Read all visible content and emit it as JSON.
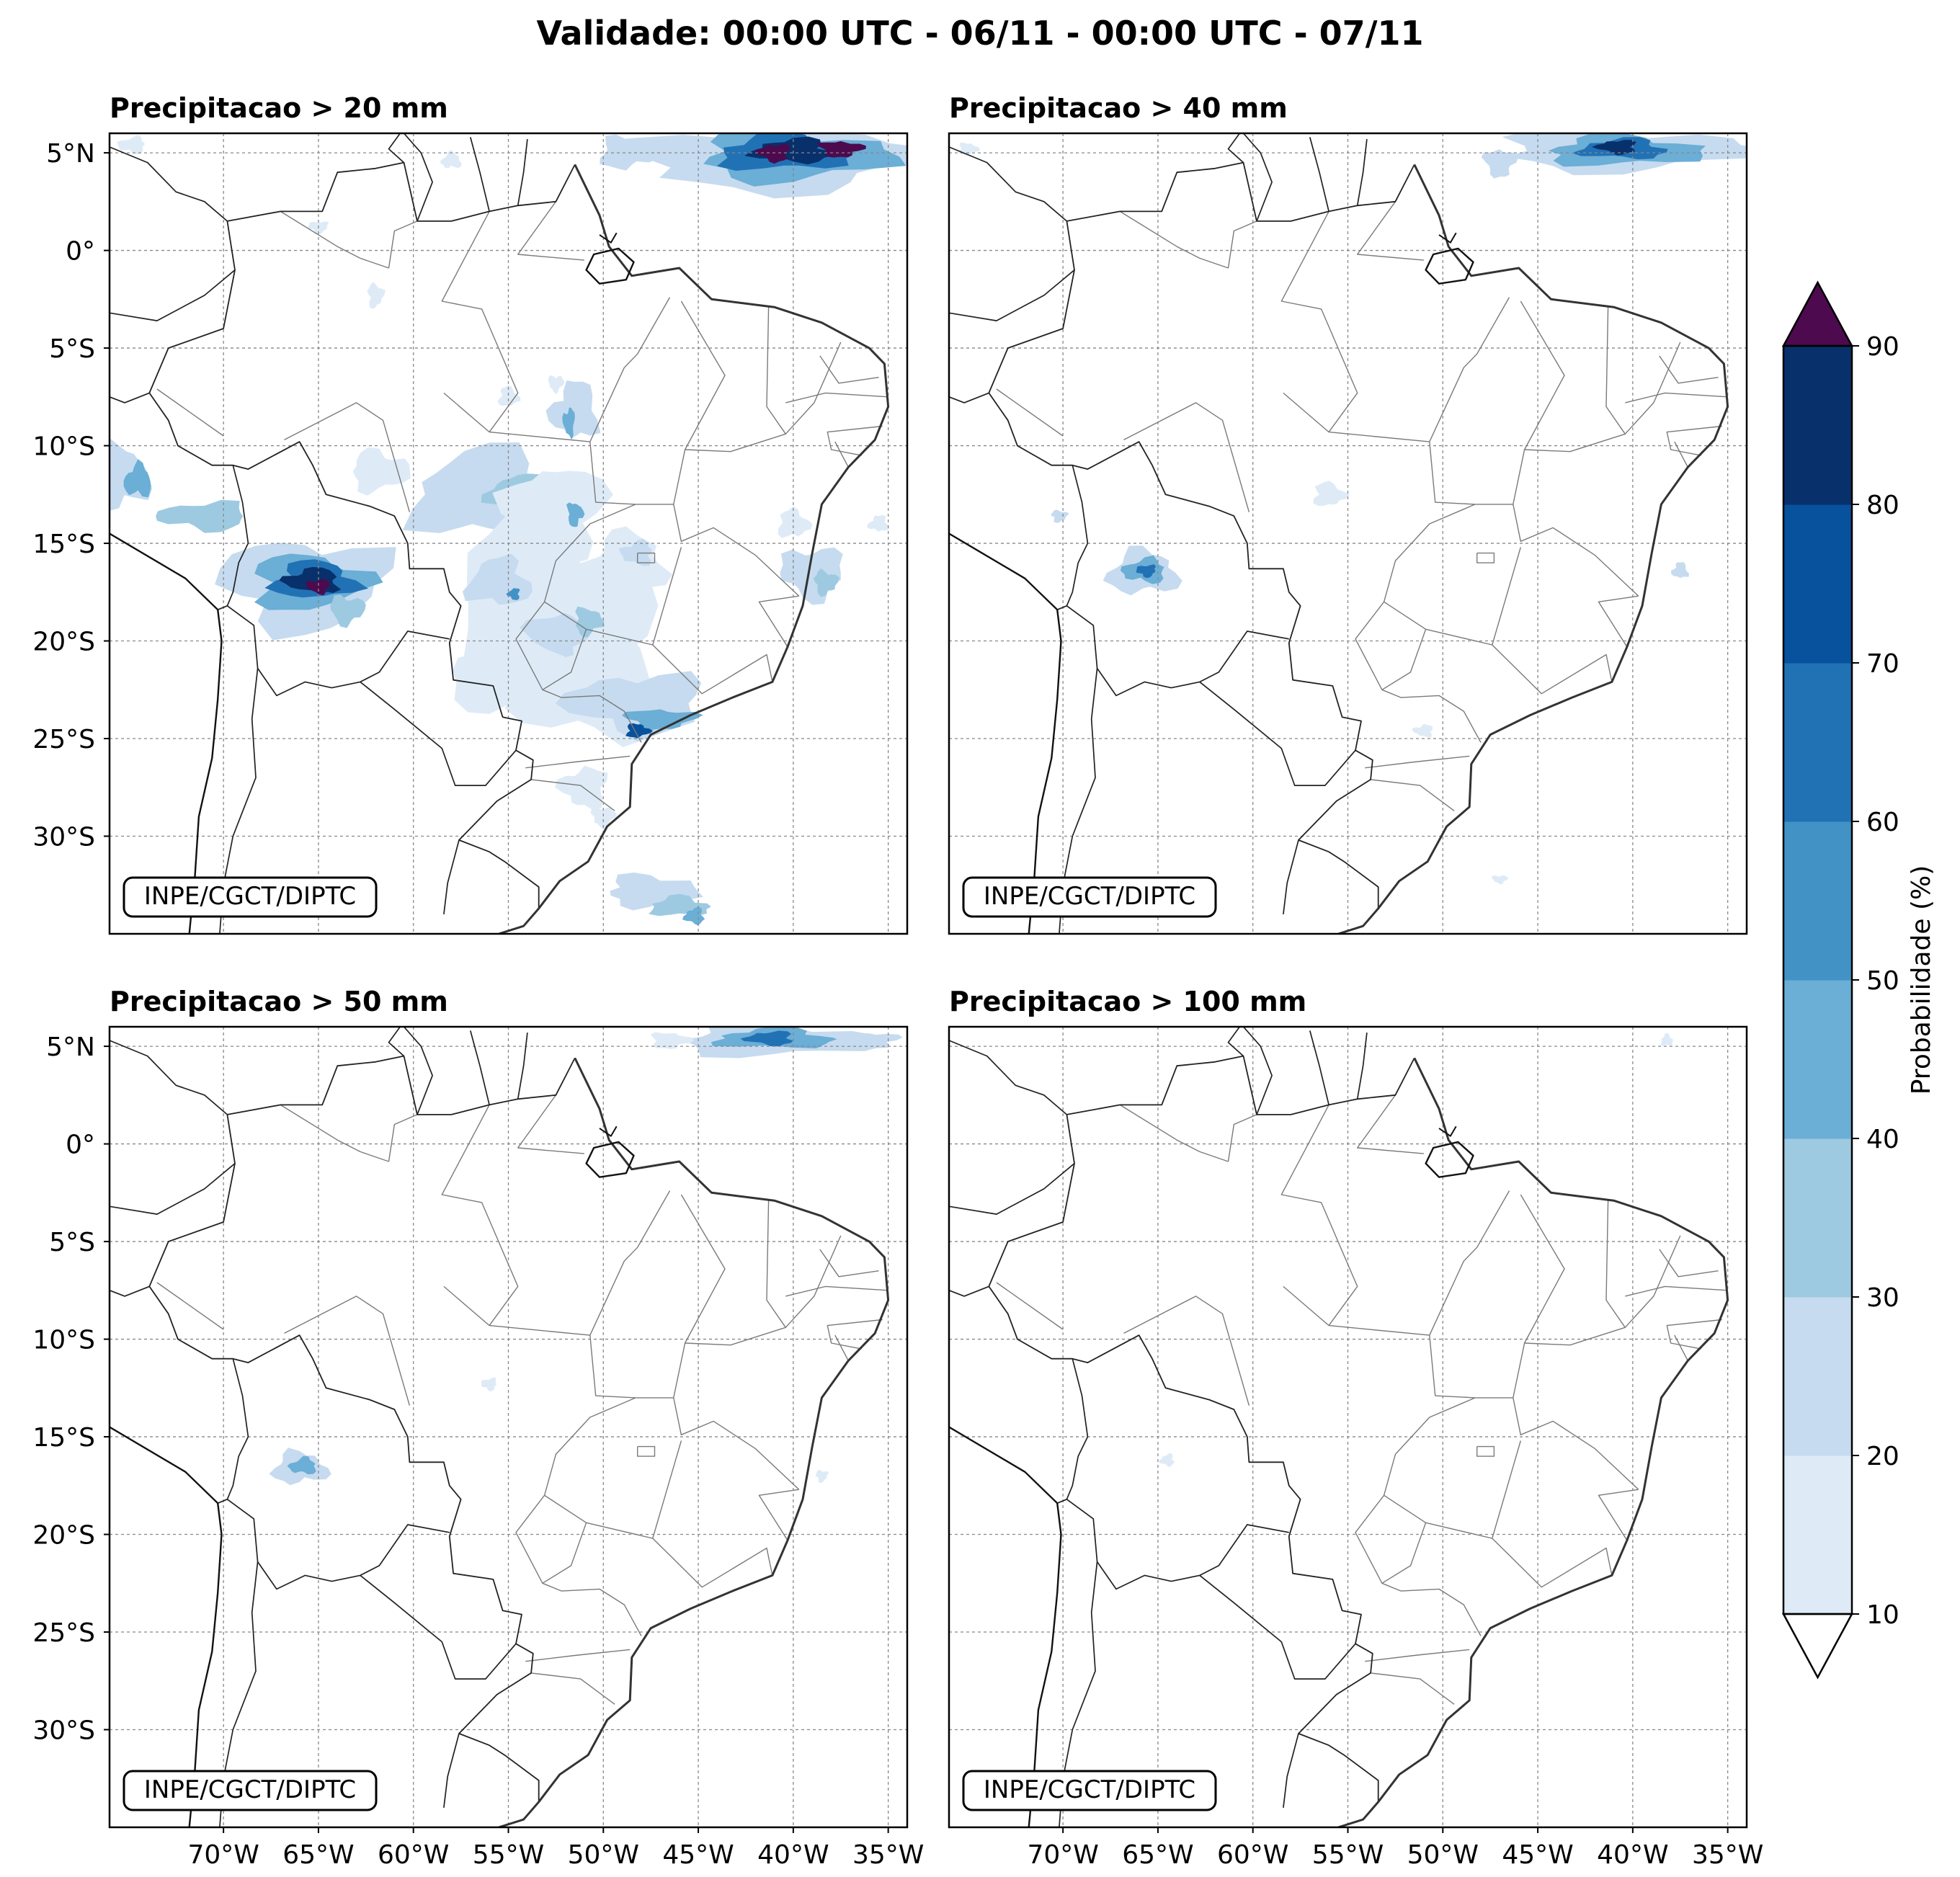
{
  "title": "Validade: 00:00 UTC - 06/11 - 00:00 UTC - 07/11",
  "watermark": "INPE/CGCT/DIPTC",
  "panels": [
    {
      "title": "Precipitacao > 20 mm",
      "threshold_mm": 20
    },
    {
      "title": "Precipitacao > 40 mm",
      "threshold_mm": 40
    },
    {
      "title": "Precipitacao > 50 mm",
      "threshold_mm": 50
    },
    {
      "title": "Precipitacao > 100 mm",
      "threshold_mm": 100
    }
  ],
  "map": {
    "lon_range": [
      -76,
      -34
    ],
    "lat_range": [
      -35,
      6
    ],
    "lat_ticks": [
      {
        "value": 5,
        "label": "5°N"
      },
      {
        "value": 0,
        "label": "0°"
      },
      {
        "value": -5,
        "label": "5°S"
      },
      {
        "value": -10,
        "label": "10°S"
      },
      {
        "value": -15,
        "label": "15°S"
      },
      {
        "value": -20,
        "label": "20°S"
      },
      {
        "value": -25,
        "label": "25°S"
      },
      {
        "value": -30,
        "label": "30°S"
      }
    ],
    "lon_ticks": [
      {
        "value": -70,
        "label": "70°W"
      },
      {
        "value": -65,
        "label": "65°W"
      },
      {
        "value": -60,
        "label": "60°W"
      },
      {
        "value": -55,
        "label": "55°W"
      },
      {
        "value": -50,
        "label": "50°W"
      },
      {
        "value": -45,
        "label": "45°W"
      },
      {
        "value": -40,
        "label": "40°W"
      },
      {
        "value": -35,
        "label": "35°W"
      }
    ]
  },
  "colorbar": {
    "label": "Probabilidade (%)",
    "ticks": [
      10,
      20,
      30,
      40,
      50,
      60,
      70,
      80,
      90
    ],
    "colors": [
      "#deebf7",
      "#c6dbef",
      "#9ecae1",
      "#6baed6",
      "#4292c6",
      "#2171b5",
      "#08519c",
      "#08306b"
    ],
    "over_color": "#4d0a4f",
    "under_color": "#ffffff"
  }
}
